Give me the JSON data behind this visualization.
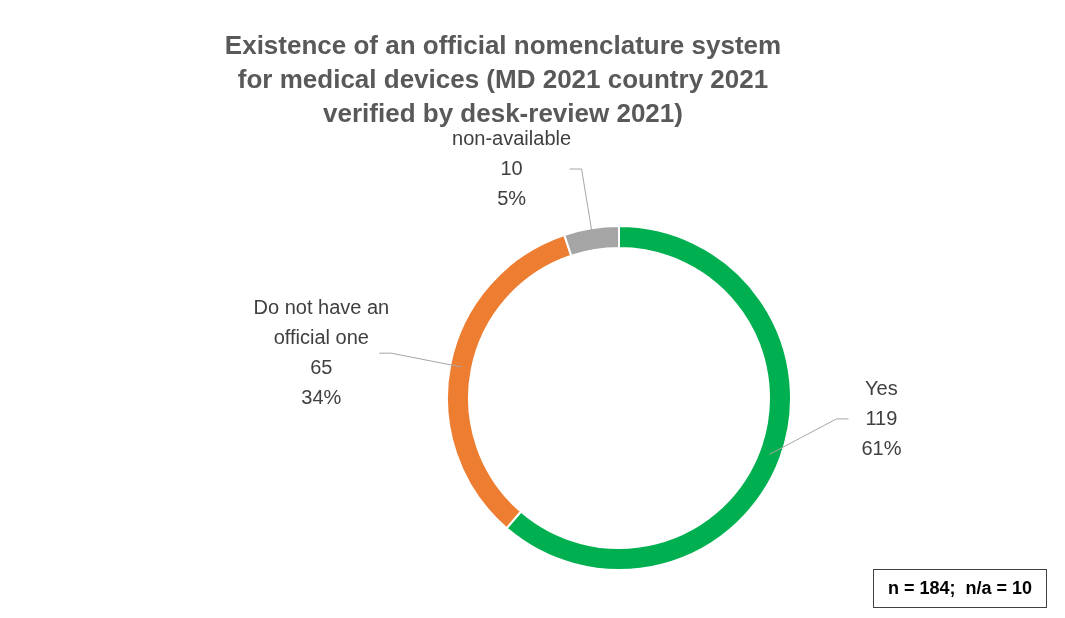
{
  "chart_data": {
    "type": "donut",
    "title": "Existence of an official nomenclature system for medical devices (MD 2021 country 2021 verified by desk-review 2021)",
    "categories": [
      "Yes",
      "Do not have an official one",
      "non-available"
    ],
    "values": [
      119,
      65,
      10
    ],
    "colors": [
      "#00b050",
      "#ed7d31",
      "#a5a5a5"
    ],
    "value_labels": [
      "119\n61%",
      "65\n34%",
      "10\n5%"
    ],
    "annotations": [
      "n = 184;  n/a = 10"
    ]
  }
}
